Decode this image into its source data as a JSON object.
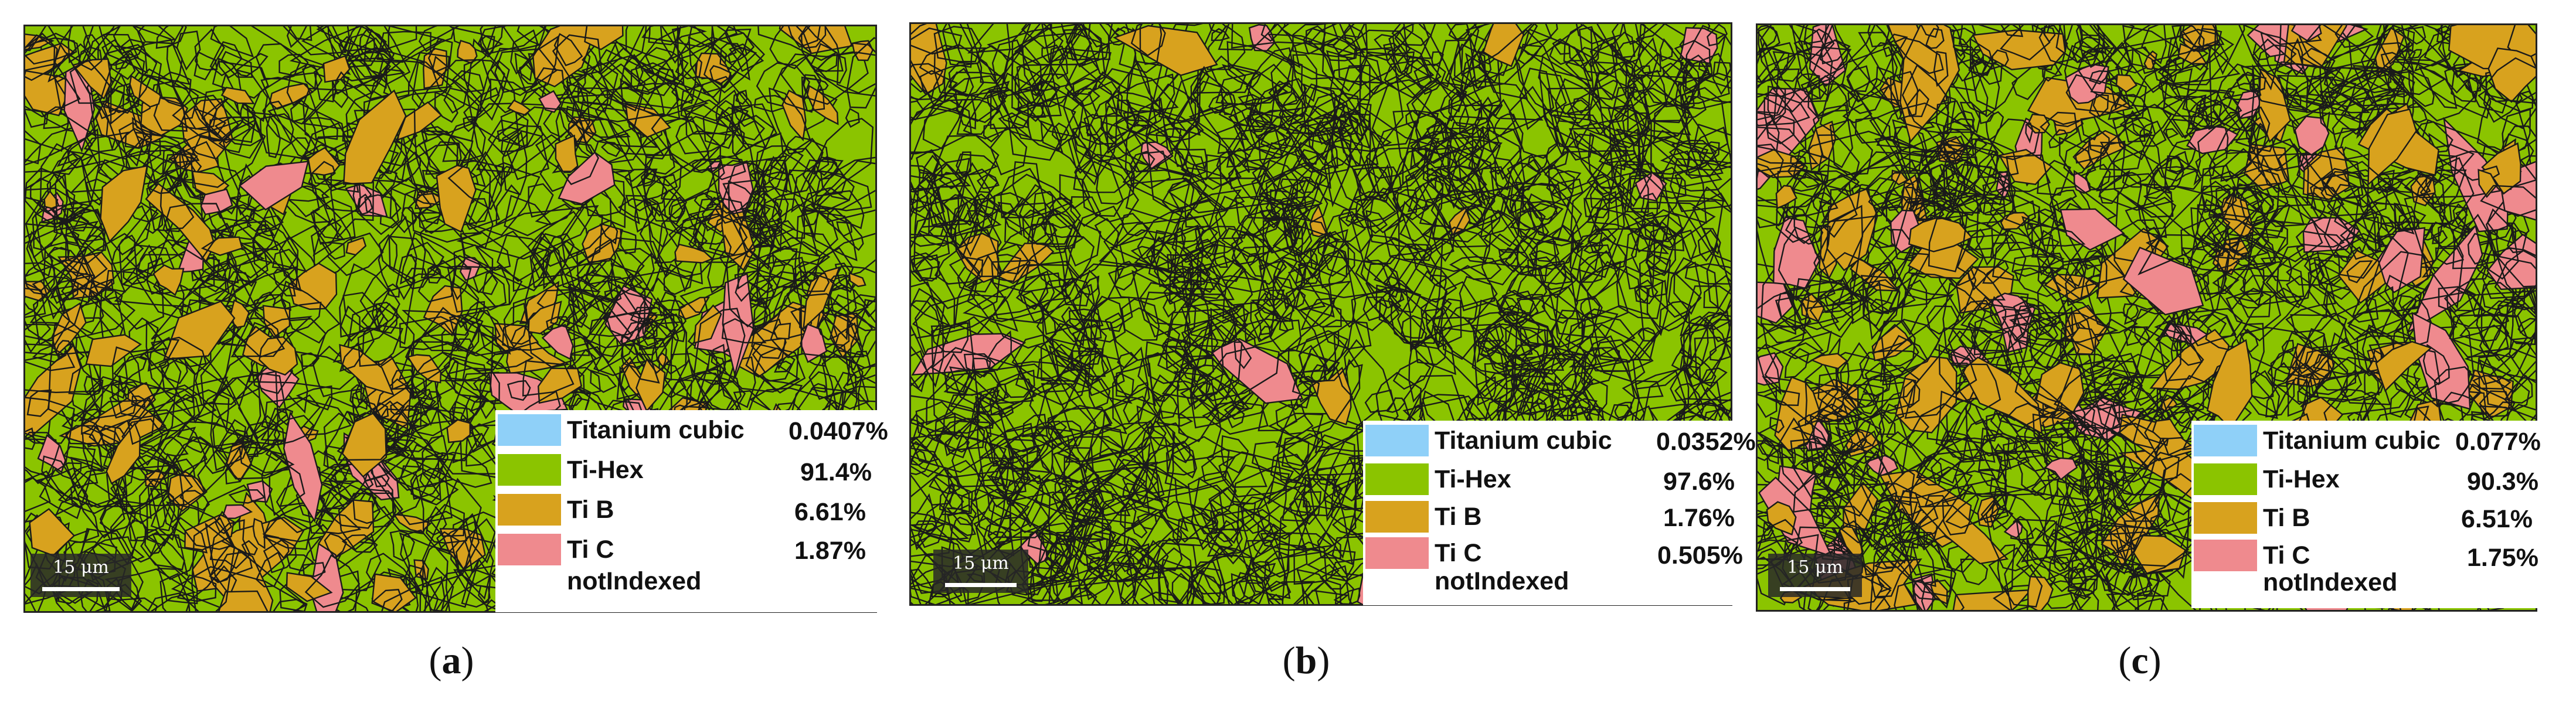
{
  "colors": {
    "ti_hex": "#8bc400",
    "ti_b": "#d8a21e",
    "ti_c": "#ef8a8e",
    "ti_cubic": "#8fd0f8",
    "grain_boundary": "#1a1a1a"
  },
  "panels": [
    {
      "label": "a",
      "scale_text": "15 μm",
      "legend": {
        "titanium_cubic": {
          "name": "Titanium cubic",
          "value": "0.0407%"
        },
        "ti_hex": {
          "name": "Ti-Hex",
          "value": "91.4%"
        },
        "ti_b": {
          "name": "Ti B",
          "value": "6.61%"
        },
        "ti_c": {
          "name": "Ti C",
          "value": "1.87%"
        },
        "not_indexed": "notIndexed"
      }
    },
    {
      "label": "b",
      "scale_text": "15 μm",
      "legend": {
        "titanium_cubic": {
          "name": "Titanium cubic",
          "value": "0.0352%"
        },
        "ti_hex": {
          "name": "Ti-Hex",
          "value": "97.6%"
        },
        "ti_b": {
          "name": "Ti B",
          "value": "1.76%"
        },
        "ti_c": {
          "name": "Ti C",
          "value": "0.505%"
        },
        "not_indexed": "notIndexed"
      }
    },
    {
      "label": "c",
      "scale_text": "15 μm",
      "legend": {
        "titanium_cubic": {
          "name": "Titanium cubic",
          "value": "0.077%"
        },
        "ti_hex": {
          "name": "Ti-Hex",
          "value": "90.3%"
        },
        "ti_b": {
          "name": "Ti B",
          "value": "6.51%"
        },
        "ti_c": {
          "name": "Ti C",
          "value": "1.75%"
        },
        "not_indexed": "notIndexed"
      }
    }
  ],
  "captions": [
    "(a)",
    "(b)",
    "(c)"
  ]
}
